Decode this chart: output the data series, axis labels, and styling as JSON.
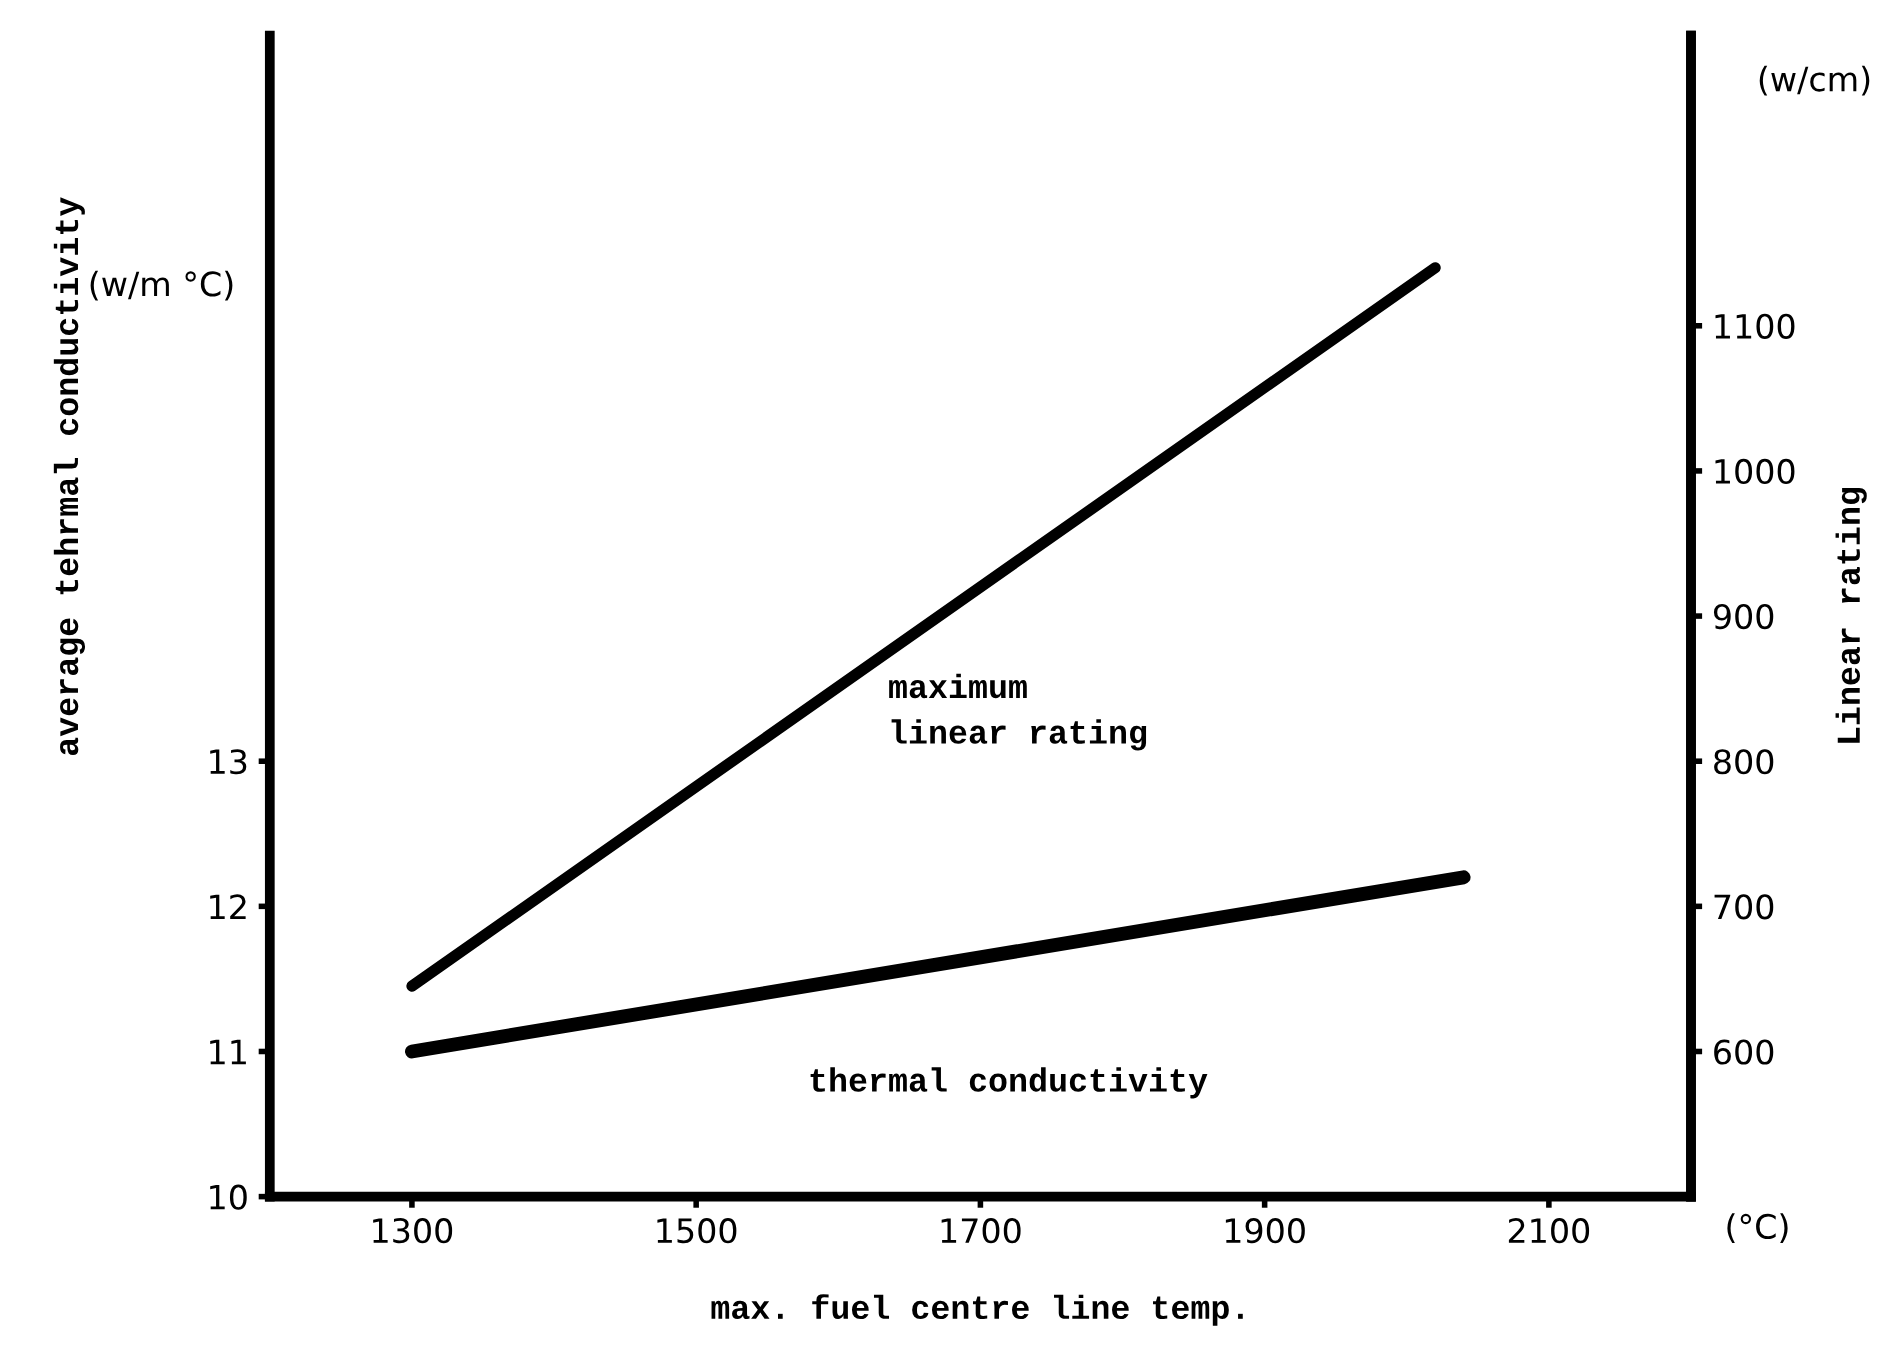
{
  "chart_data": {
    "type": "line",
    "xlabel": "max. fuel centre line temp.",
    "ylabel": "average tehrmal conductivity",
    "y2label": "Linear rating",
    "annotations": [
      "(w/m °C)",
      "(w/cm)",
      "(°C)"
    ],
    "series": [
      {
        "name": "thermal conductivity",
        "color": "#000000",
        "x": [
          1300,
          2040
        ],
        "values": [
          11.0,
          12.2
        ]
      },
      {
        "name": "maximum\nlinear rating",
        "color": "#000000",
        "axis": "y2",
        "x": [
          1300,
          2020
        ],
        "values": [
          645,
          1140
        ]
      }
    ],
    "xlim": [
      1200,
      2200
    ],
    "xticks": [
      1300,
      1500,
      1700,
      1900,
      2100
    ],
    "ylim": [
      10,
      18
    ],
    "yticks": [
      10,
      11,
      12,
      13
    ],
    "y2lim": [
      500,
      1300
    ],
    "y2ticks": [
      600,
      700,
      800,
      900,
      1000,
      1100
    ],
    "grid": false,
    "legend": false,
    "marker": "none",
    "line_style": "solid"
  }
}
